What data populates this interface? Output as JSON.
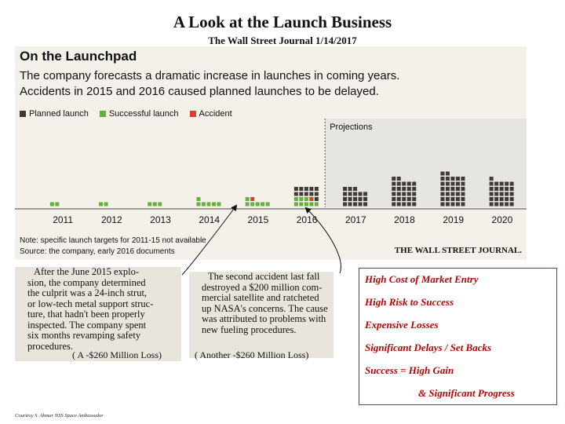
{
  "title": "A Look at the Launch Business",
  "subtitle": "The Wall Street Journal 1/14/2017",
  "clip": {
    "heading": "On the Launchpad",
    "sub1": "The company forecasts a dramatic increase in launches in coming years.",
    "sub2": "Accidents in 2015 and 2016 caused planned launches to be delayed.",
    "note1": "Note: specific launch targets for 2011-15 not available",
    "note2": "Source: the company, early 2016 documents",
    "credit": "THE WALL STREET JOURNAL."
  },
  "colors": {
    "planned": "#3f3a36",
    "success": "#62b23a",
    "accident": "#d9412b",
    "background": "#f4f1ea",
    "projection_bg": "#e7e5e0"
  },
  "chart_data": {
    "type": "bar",
    "categories": [
      "2011",
      "2012",
      "2013",
      "2014",
      "2015",
      "2016",
      "2017",
      "2018",
      "2019",
      "2020"
    ],
    "series": [
      {
        "name": "Planned launch",
        "values": [
          0,
          0,
          0,
          0,
          0,
          11,
          18,
          27,
          32,
          26
        ]
      },
      {
        "name": "Successful launch",
        "values": [
          2,
          2,
          3,
          6,
          6,
          8,
          0,
          0,
          0,
          0
        ]
      },
      {
        "name": "Accident",
        "values": [
          0,
          0,
          0,
          0,
          1,
          1,
          0,
          0,
          0,
          0
        ]
      }
    ],
    "stacking": "bottom: successful, then accident, then planned",
    "projection_label": "Projections",
    "projection_start": "2017",
    "legend": [
      "Planned launch",
      "Successful launch",
      "Accident"
    ],
    "legend_position": "top-left",
    "grid": false
  },
  "para1": {
    "lines": [
      "After the June 2015 explo-",
      "sion, the company determined",
      "the culprit was a 24-inch strut,",
      "or low-tech metal support struc-",
      "ture, that hadn't been properly",
      "inspected. The company spent",
      "six months revamping safety",
      "procedures."
    ],
    "loss": "( A -$260 Million Loss)"
  },
  "para2": {
    "lines": [
      "The second accident last fall",
      "destroyed a $200 million com-",
      "mercial satellite and ratcheted",
      "up NASA's concerns. The cause",
      "was attributed to problems with",
      "new fueling procedures."
    ],
    "loss": "( Another -$260 Million Loss)"
  },
  "summary": [
    "High Cost of Market Entry",
    "High Risk to Success",
    "Expensive Losses",
    "Significant Delays / Set Backs",
    "Success = High Gain",
    "& Significant Progress"
  ],
  "courtesy": "Courtesy S. Ahmar NSS Space Ambassador"
}
